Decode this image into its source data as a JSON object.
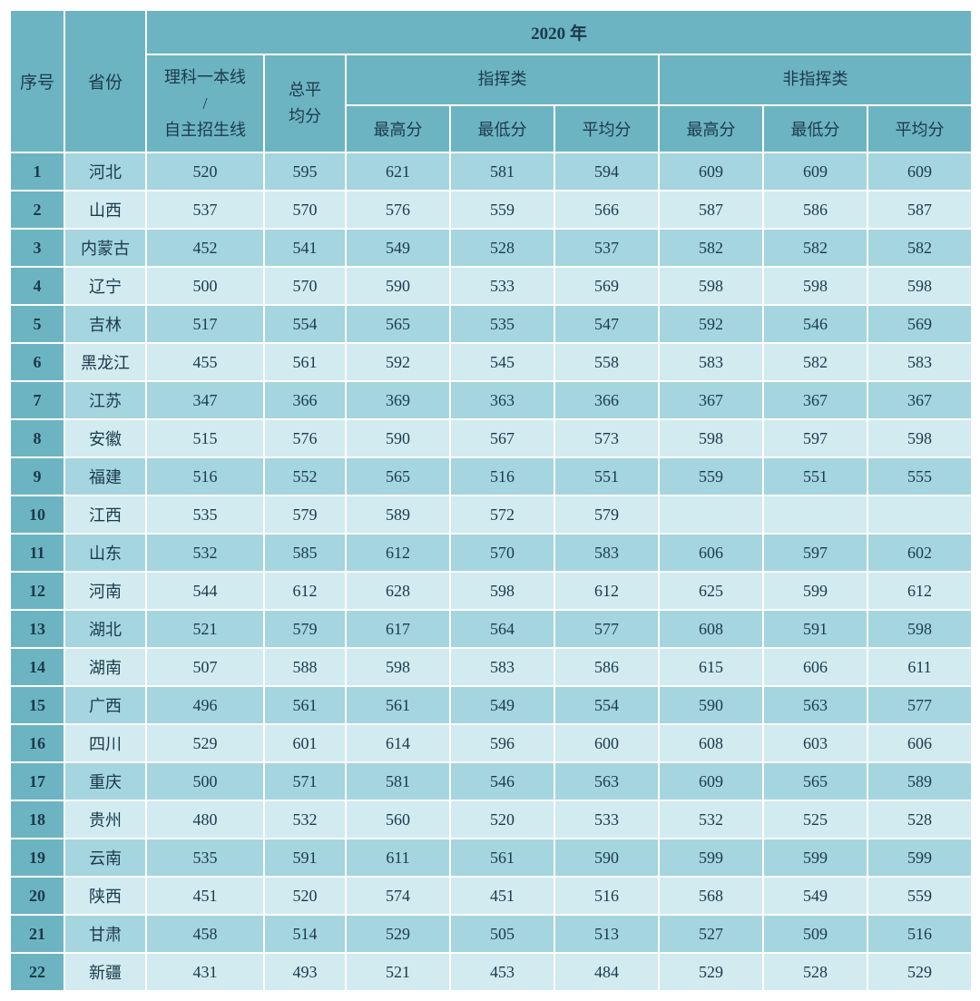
{
  "table": {
    "year_header": "2020 年",
    "columns": {
      "seq": "序号",
      "province": "省份",
      "tier_line": "理科一本线\n/\n自主招生线",
      "total_avg": "总平\n均分",
      "command_group": "指挥类",
      "noncommand_group": "非指挥类",
      "max": "最高分",
      "min": "最低分",
      "avg": "平均分"
    },
    "colors": {
      "header_bg": "#6db4c2",
      "row_light_bg": "#d1ebf0",
      "row_dark_bg": "#a5d5df",
      "border": "#ffffff",
      "text": "#1a3a4a"
    },
    "font": {
      "family": "SimSun",
      "header_size": 19,
      "cell_size": 18
    },
    "rows": [
      {
        "seq": "1",
        "province": "河北",
        "tier_line": "520",
        "total_avg": "595",
        "c_max": "621",
        "c_min": "581",
        "c_avg": "594",
        "nc_max": "609",
        "nc_min": "609",
        "nc_avg": "609"
      },
      {
        "seq": "2",
        "province": "山西",
        "tier_line": "537",
        "total_avg": "570",
        "c_max": "576",
        "c_min": "559",
        "c_avg": "566",
        "nc_max": "587",
        "nc_min": "586",
        "nc_avg": "587"
      },
      {
        "seq": "3",
        "province": "内蒙古",
        "tier_line": "452",
        "total_avg": "541",
        "c_max": "549",
        "c_min": "528",
        "c_avg": "537",
        "nc_max": "582",
        "nc_min": "582",
        "nc_avg": "582"
      },
      {
        "seq": "4",
        "province": "辽宁",
        "tier_line": "500",
        "total_avg": "570",
        "c_max": "590",
        "c_min": "533",
        "c_avg": "569",
        "nc_max": "598",
        "nc_min": "598",
        "nc_avg": "598"
      },
      {
        "seq": "5",
        "province": "吉林",
        "tier_line": "517",
        "total_avg": "554",
        "c_max": "565",
        "c_min": "535",
        "c_avg": "547",
        "nc_max": "592",
        "nc_min": "546",
        "nc_avg": "569"
      },
      {
        "seq": "6",
        "province": "黑龙江",
        "tier_line": "455",
        "total_avg": "561",
        "c_max": "592",
        "c_min": "545",
        "c_avg": "558",
        "nc_max": "583",
        "nc_min": "582",
        "nc_avg": "583"
      },
      {
        "seq": "7",
        "province": "江苏",
        "tier_line": "347",
        "total_avg": "366",
        "c_max": "369",
        "c_min": "363",
        "c_avg": "366",
        "nc_max": "367",
        "nc_min": "367",
        "nc_avg": "367"
      },
      {
        "seq": "8",
        "province": "安徽",
        "tier_line": "515",
        "total_avg": "576",
        "c_max": "590",
        "c_min": "567",
        "c_avg": "573",
        "nc_max": "598",
        "nc_min": "597",
        "nc_avg": "598"
      },
      {
        "seq": "9",
        "province": "福建",
        "tier_line": "516",
        "total_avg": "552",
        "c_max": "565",
        "c_min": "516",
        "c_avg": "551",
        "nc_max": "559",
        "nc_min": "551",
        "nc_avg": "555"
      },
      {
        "seq": "10",
        "province": "江西",
        "tier_line": "535",
        "total_avg": "579",
        "c_max": "589",
        "c_min": "572",
        "c_avg": "579",
        "nc_max": "",
        "nc_min": "",
        "nc_avg": ""
      },
      {
        "seq": "11",
        "province": "山东",
        "tier_line": "532",
        "total_avg": "585",
        "c_max": "612",
        "c_min": "570",
        "c_avg": "583",
        "nc_max": "606",
        "nc_min": "597",
        "nc_avg": "602"
      },
      {
        "seq": "12",
        "province": "河南",
        "tier_line": "544",
        "total_avg": "612",
        "c_max": "628",
        "c_min": "598",
        "c_avg": "612",
        "nc_max": "625",
        "nc_min": "599",
        "nc_avg": "612"
      },
      {
        "seq": "13",
        "province": "湖北",
        "tier_line": "521",
        "total_avg": "579",
        "c_max": "617",
        "c_min": "564",
        "c_avg": "577",
        "nc_max": "608",
        "nc_min": "591",
        "nc_avg": "598"
      },
      {
        "seq": "14",
        "province": "湖南",
        "tier_line": "507",
        "total_avg": "588",
        "c_max": "598",
        "c_min": "583",
        "c_avg": "586",
        "nc_max": "615",
        "nc_min": "606",
        "nc_avg": "611"
      },
      {
        "seq": "15",
        "province": "广西",
        "tier_line": "496",
        "total_avg": "561",
        "c_max": "561",
        "c_min": "549",
        "c_avg": "554",
        "nc_max": "590",
        "nc_min": "563",
        "nc_avg": "577"
      },
      {
        "seq": "16",
        "province": "四川",
        "tier_line": "529",
        "total_avg": "601",
        "c_max": "614",
        "c_min": "596",
        "c_avg": "600",
        "nc_max": "608",
        "nc_min": "603",
        "nc_avg": "606"
      },
      {
        "seq": "17",
        "province": "重庆",
        "tier_line": "500",
        "total_avg": "571",
        "c_max": "581",
        "c_min": "546",
        "c_avg": "563",
        "nc_max": "609",
        "nc_min": "565",
        "nc_avg": "589"
      },
      {
        "seq": "18",
        "province": "贵州",
        "tier_line": "480",
        "total_avg": "532",
        "c_max": "560",
        "c_min": "520",
        "c_avg": "533",
        "nc_max": "532",
        "nc_min": "525",
        "nc_avg": "528"
      },
      {
        "seq": "19",
        "province": "云南",
        "tier_line": "535",
        "total_avg": "591",
        "c_max": "611",
        "c_min": "561",
        "c_avg": "590",
        "nc_max": "599",
        "nc_min": "599",
        "nc_avg": "599"
      },
      {
        "seq": "20",
        "province": "陕西",
        "tier_line": "451",
        "total_avg": "520",
        "c_max": "574",
        "c_min": "451",
        "c_avg": "516",
        "nc_max": "568",
        "nc_min": "549",
        "nc_avg": "559"
      },
      {
        "seq": "21",
        "province": "甘肃",
        "tier_line": "458",
        "total_avg": "514",
        "c_max": "529",
        "c_min": "505",
        "c_avg": "513",
        "nc_max": "527",
        "nc_min": "509",
        "nc_avg": "516"
      },
      {
        "seq": "22",
        "province": "新疆",
        "tier_line": "431",
        "total_avg": "493",
        "c_max": "521",
        "c_min": "453",
        "c_avg": "484",
        "nc_max": "529",
        "nc_min": "528",
        "nc_avg": "529"
      }
    ]
  }
}
